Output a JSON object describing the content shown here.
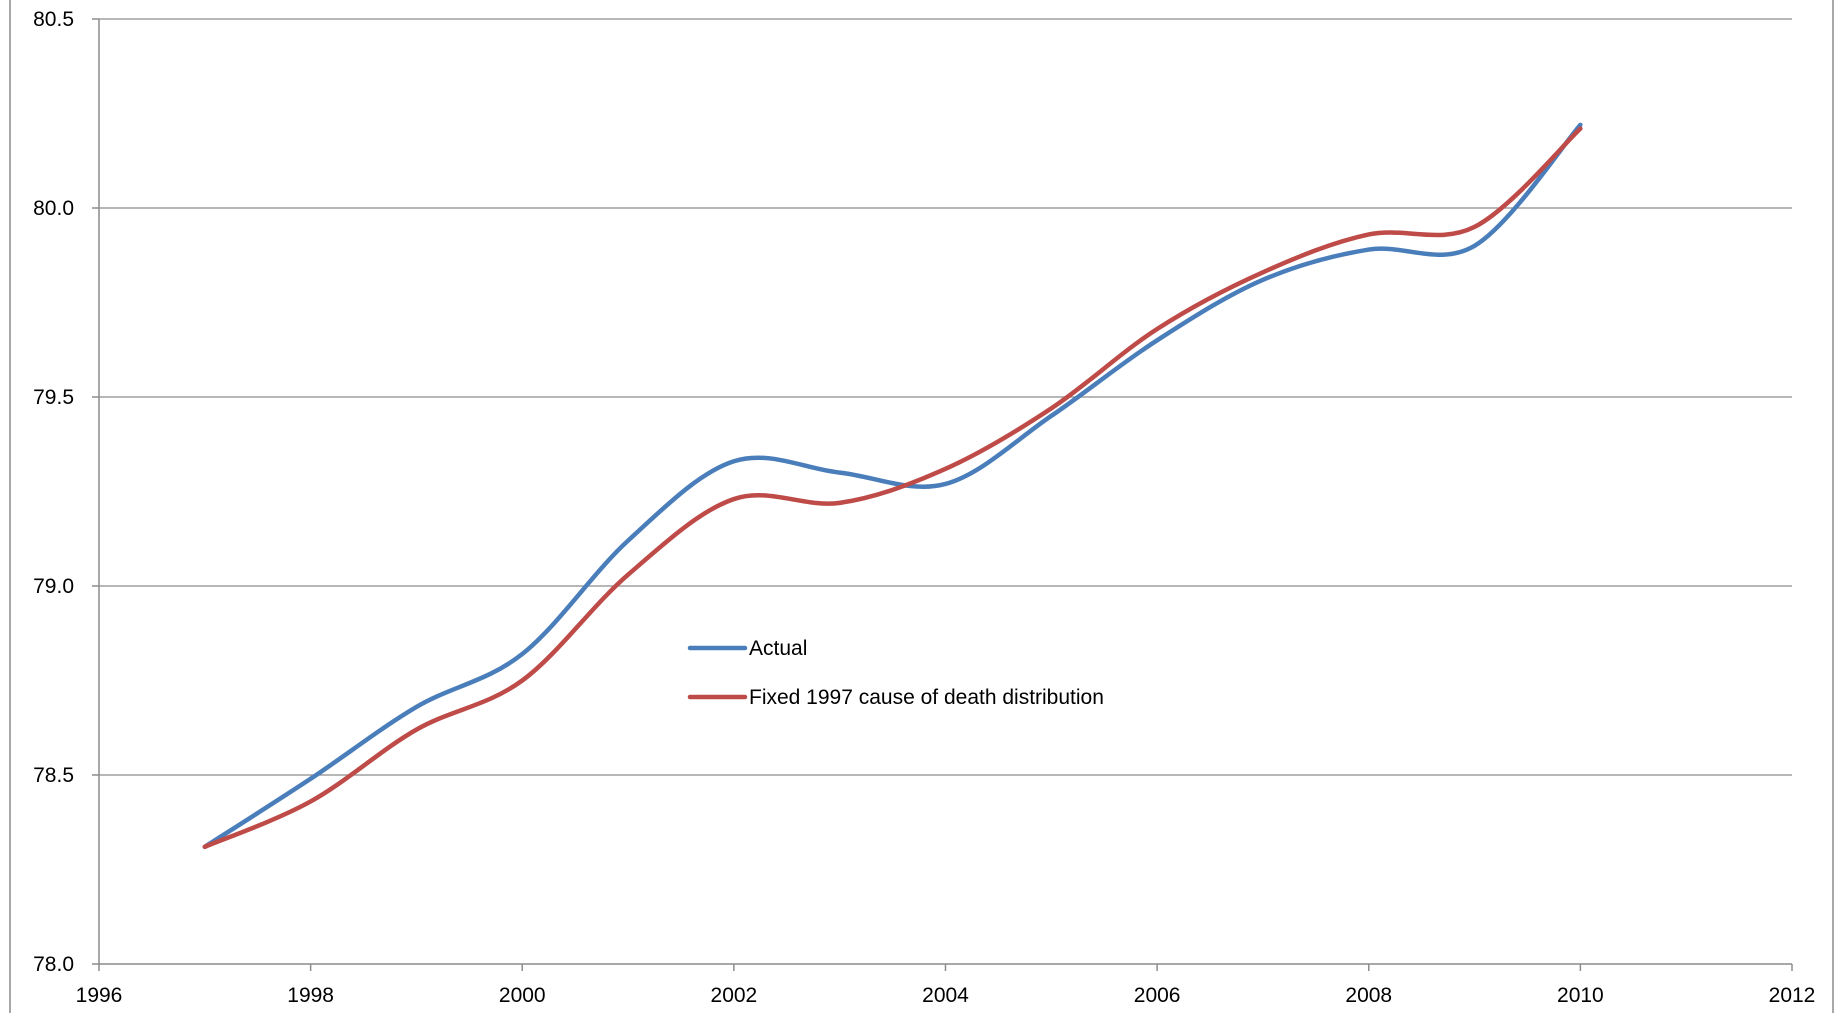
{
  "chart_data": {
    "type": "line",
    "title": "",
    "xlabel": "",
    "ylabel": "",
    "xlim": [
      1996,
      2012
    ],
    "ylim": [
      78.0,
      80.5
    ],
    "x_ticks": [
      1996,
      1998,
      2000,
      2002,
      2004,
      2006,
      2008,
      2010,
      2012
    ],
    "x_tick_labels": [
      "1996",
      "1998",
      "2000",
      "2002",
      "2004",
      "2006",
      "2008",
      "2010",
      "2012"
    ],
    "y_ticks": [
      78.0,
      78.5,
      79.0,
      79.5,
      80.0,
      80.5
    ],
    "y_tick_labels": [
      "78.0",
      "78.5",
      "79.0",
      "79.5",
      "80.0",
      "80.5"
    ],
    "grid": "horizontal",
    "legend_position": "center",
    "x": [
      1997,
      1998,
      1999,
      2000,
      2001,
      2002,
      2003,
      2004,
      2005,
      2006,
      2007,
      2008,
      2009,
      2010
    ],
    "series": [
      {
        "name": "Actual",
        "color": "#4a7ebb",
        "values": [
          78.31,
          78.49,
          78.68,
          78.82,
          79.12,
          79.33,
          79.3,
          79.27,
          79.45,
          79.65,
          79.81,
          79.89,
          79.9,
          80.22
        ]
      },
      {
        "name": "Fixed 1997 cause of death distribution",
        "color": "#be4b48",
        "values": [
          78.31,
          78.43,
          78.62,
          78.75,
          79.03,
          79.23,
          79.22,
          79.31,
          79.47,
          79.68,
          79.83,
          79.93,
          79.95,
          80.21
        ]
      }
    ]
  }
}
